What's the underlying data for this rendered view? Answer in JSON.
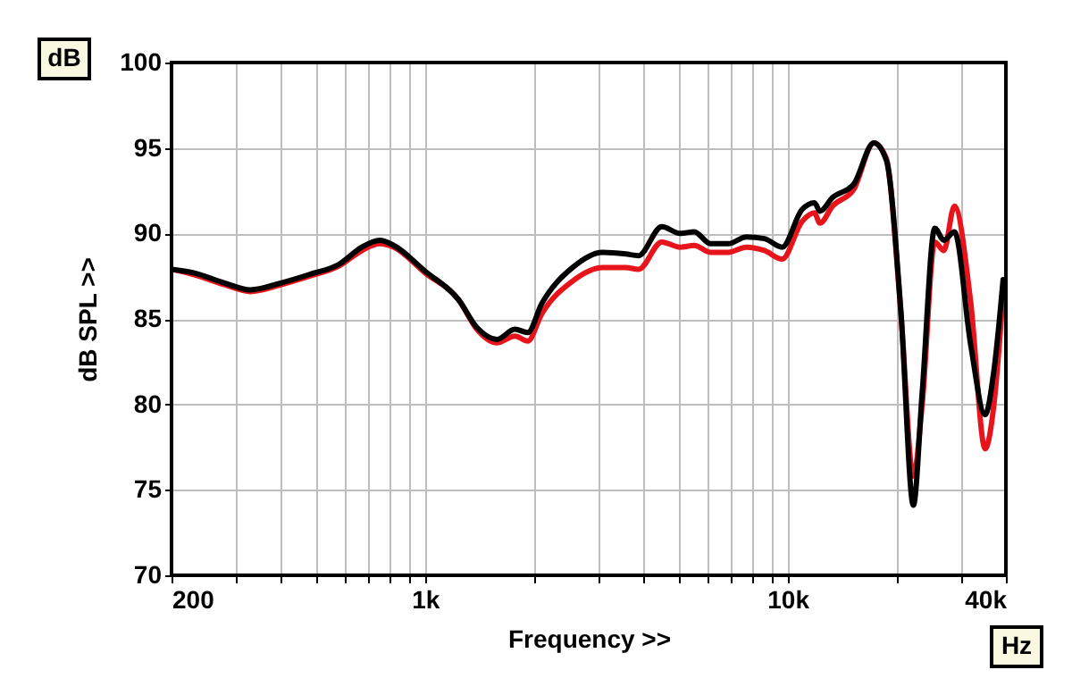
{
  "chart_data": {
    "type": "line",
    "xlabel": "Frequency >>",
    "ylabel": "dB SPL >>",
    "log": "x",
    "grid": true,
    "xlim": [
      200,
      40000
    ],
    "ylim": [
      70,
      100
    ],
    "xticks": [
      200,
      {
        "value": 300,
        "label": null
      },
      {
        "value": 400,
        "label": null
      },
      {
        "value": 500,
        "label": null
      },
      {
        "value": 600,
        "label": null
      },
      {
        "value": 700,
        "label": null
      },
      {
        "value": 800,
        "label": null
      },
      {
        "value": 900,
        "label": null
      },
      {
        "value": 1000,
        "label": "1k"
      },
      {
        "value": 2000,
        "label": null
      },
      {
        "value": 3000,
        "label": null
      },
      {
        "value": 4000,
        "label": null
      },
      {
        "value": 5000,
        "label": null
      },
      {
        "value": 6000,
        "label": null
      },
      {
        "value": 7000,
        "label": null
      },
      {
        "value": 8000,
        "label": null
      },
      {
        "value": 9000,
        "label": null
      },
      {
        "value": 10000,
        "label": "10k"
      },
      {
        "value": 20000,
        "label": null
      },
      {
        "value": 30000,
        "label": null
      },
      {
        "value": 40000,
        "label": "40k"
      }
    ],
    "yticks": [
      70,
      75,
      80,
      85,
      90,
      95,
      100
    ],
    "x": [
      200,
      230,
      280,
      330,
      400,
      480,
      580,
      670,
      750,
      820,
      1000,
      1240,
      1390,
      1580,
      1770,
      1920,
      2100,
      2550,
      3090,
      3580,
      3880,
      4500,
      5050,
      5530,
      6120,
      6870,
      7690,
      8630,
      9660,
      10960,
      11860,
      12280,
      13300,
      15240,
      17290,
      18710,
      20510,
      22230,
      23510,
      25470,
      26980,
      28850,
      31980,
      35060,
      37080,
      39300
    ],
    "series": [
      {
        "color": "#e8141c",
        "values": [
          87.9,
          87.6,
          87.0,
          86.6,
          87.0,
          87.5,
          88.1,
          89.0,
          89.4,
          89.2,
          87.7,
          86.1,
          84.4,
          83.6,
          84.0,
          83.7,
          85.3,
          87.2,
          88.0,
          88.0,
          87.9,
          89.5,
          89.2,
          89.3,
          88.9,
          88.9,
          89.2,
          89.0,
          88.5,
          90.7,
          91.2,
          90.6,
          91.6,
          92.6,
          95.3,
          94.4,
          85.5,
          75.8,
          80.0,
          89.5,
          89.0,
          91.6,
          86.0,
          77.4,
          80.0,
          86.5
        ]
      },
      {
        "color": "#000000",
        "values": [
          87.9,
          87.7,
          87.1,
          86.7,
          87.1,
          87.6,
          88.2,
          89.2,
          89.6,
          89.3,
          87.8,
          86.1,
          84.5,
          83.8,
          84.4,
          84.2,
          85.9,
          88.0,
          88.9,
          88.8,
          88.7,
          90.4,
          90.0,
          90.1,
          89.4,
          89.4,
          89.8,
          89.7,
          89.2,
          91.4,
          91.8,
          91.3,
          92.1,
          92.9,
          95.3,
          94.3,
          85.6,
          74.1,
          80.7,
          90.3,
          89.6,
          90.1,
          83.5,
          79.4,
          82.0,
          87.3
        ]
      }
    ],
    "annotations": [
      "dB",
      "Hz"
    ]
  }
}
